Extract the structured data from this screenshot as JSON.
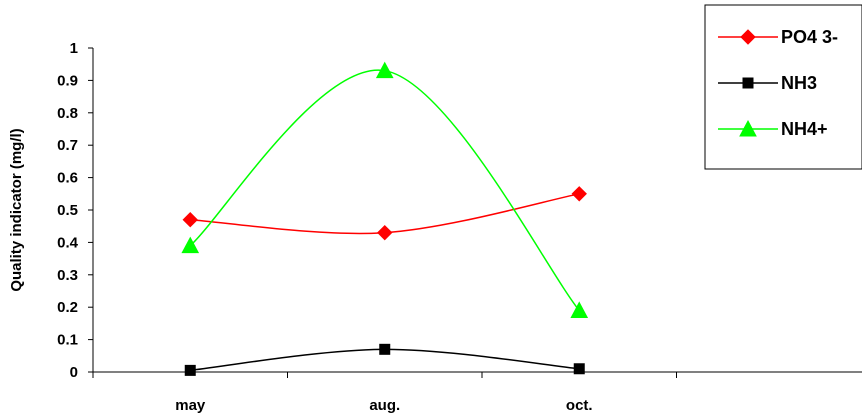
{
  "chart_data": {
    "type": "line",
    "categories": [
      "may",
      "aug.",
      "oct."
    ],
    "ylabel": "Quality indicator (mg/l)",
    "xlabel": "",
    "ylim": [
      0,
      1
    ],
    "yticks": [
      "0",
      "0.1",
      "0.2",
      "0.3",
      "0.4",
      "0.5",
      "0.6",
      "0.7",
      "0.8",
      "0.9",
      "1"
    ],
    "series": [
      {
        "name": "PO4 3-",
        "values": [
          0.47,
          0.43,
          0.55
        ],
        "color": "#ff0000",
        "marker": "diamond"
      },
      {
        "name": "NH3",
        "values": [
          0.005,
          0.07,
          0.01
        ],
        "color": "#000000",
        "marker": "square"
      },
      {
        "name": "NH4+",
        "values": [
          0.39,
          0.93,
          0.19
        ],
        "color": "#00ff00",
        "marker": "triangle"
      }
    ],
    "grid": false,
    "legend": "top-right",
    "smooth": true
  }
}
